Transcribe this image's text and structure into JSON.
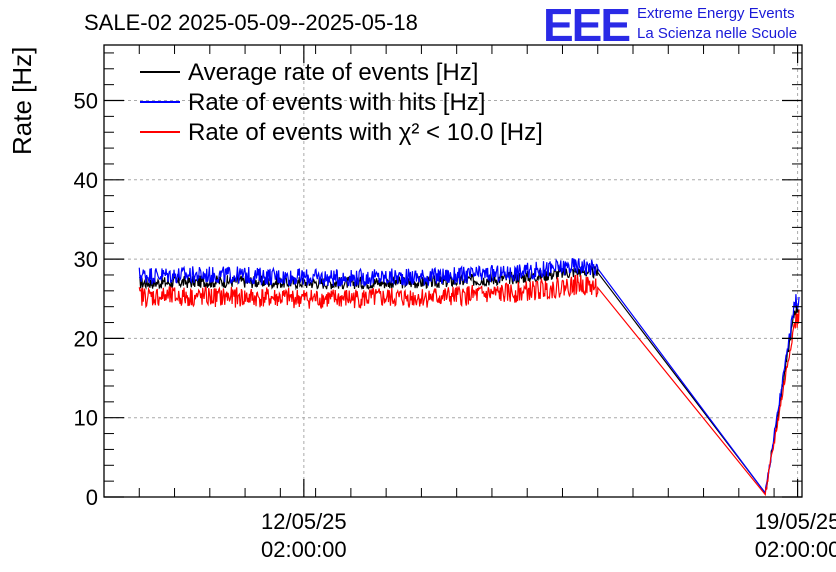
{
  "title": "SALE-02 2025-05-09--2025-05-18",
  "logo": {
    "mark": "EEE",
    "line1": "Extreme Energy Events",
    "line2": "La Scienza nelle Scuole",
    "color": "#2a2ae6"
  },
  "chart_data": {
    "type": "line",
    "title": "SALE-02 2025-05-09--2025-05-18",
    "xlabel": "",
    "ylabel": "Rate [Hz]",
    "ylim": [
      0,
      57
    ],
    "xlim": [
      "2025-05-09 06:00",
      "2025-05-19 03:30"
    ],
    "yticks": [
      0,
      10,
      20,
      30,
      40,
      50
    ],
    "xtick_labels": [
      {
        "date": "12/05/25",
        "time": "02:00:00",
        "at": "2025-05-12 02:00"
      },
      {
        "date": "19/05/25",
        "time": "02:00:00",
        "at": "2025-05-19 02:00"
      }
    ],
    "grid": true,
    "legend_position": "top-left",
    "series": [
      {
        "name": "Average rate of events [Hz]",
        "color": "#000000",
        "points": [
          [
            "2025-05-09 18:00",
            27.0
          ],
          [
            "2025-05-11 00:00",
            27.2
          ],
          [
            "2025-05-12 12:00",
            27.0
          ],
          [
            "2025-05-14 00:00",
            27.1
          ],
          [
            "2025-05-15 00:00",
            27.6
          ],
          [
            "2025-05-15 12:00",
            28.0
          ],
          [
            "2025-05-16 00:00",
            28.5
          ],
          [
            "2025-05-16 06:00",
            28.3
          ],
          [
            "2025-05-18 15:00",
            0.5
          ],
          [
            "2025-05-19 01:00",
            23.5
          ],
          [
            "2025-05-19 02:30",
            24.0
          ]
        ]
      },
      {
        "name": "Rate of events with hits [Hz]",
        "color": "#0000ff",
        "points": [
          [
            "2025-05-09 18:00",
            28.0
          ],
          [
            "2025-05-11 00:00",
            28.0
          ],
          [
            "2025-05-12 12:00",
            27.6
          ],
          [
            "2025-05-14 00:00",
            27.8
          ],
          [
            "2025-05-15 00:00",
            28.2
          ],
          [
            "2025-05-15 12:00",
            28.7
          ],
          [
            "2025-05-16 00:00",
            29.2
          ],
          [
            "2025-05-16 06:00",
            28.8
          ],
          [
            "2025-05-18 15:00",
            0.5
          ],
          [
            "2025-05-19 01:00",
            24.5
          ],
          [
            "2025-05-19 02:30",
            25.0
          ]
        ]
      },
      {
        "name": "Rate of events with χ² < 10.0 [Hz]",
        "color": "#ff0000",
        "points": [
          [
            "2025-05-09 18:00",
            25.3
          ],
          [
            "2025-05-11 00:00",
            25.2
          ],
          [
            "2025-05-12 12:00",
            25.0
          ],
          [
            "2025-05-14 00:00",
            25.2
          ],
          [
            "2025-05-15 00:00",
            25.7
          ],
          [
            "2025-05-15 12:00",
            26.2
          ],
          [
            "2025-05-16 00:00",
            26.8
          ],
          [
            "2025-05-16 06:00",
            26.4
          ],
          [
            "2025-05-18 15:00",
            0.3
          ],
          [
            "2025-05-19 01:00",
            22.0
          ],
          [
            "2025-05-19 02:30",
            22.5
          ]
        ]
      }
    ]
  }
}
